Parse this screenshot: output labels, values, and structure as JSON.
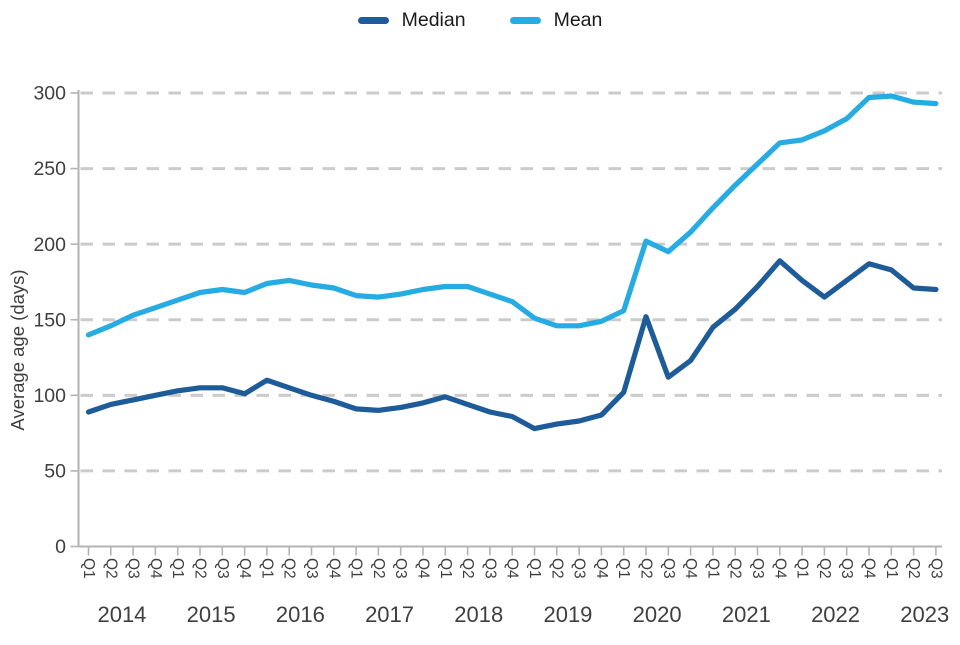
{
  "chart_data": {
    "type": "line",
    "title": "",
    "ylabel": "Average age (days)",
    "ylim": [
      0,
      300
    ],
    "yticks": [
      0,
      50,
      100,
      150,
      200,
      250,
      300
    ],
    "grid": "horizontal-dashed",
    "legend_position": "top-center",
    "x_labels": [
      "Q1",
      "Q2",
      "Q3",
      "Q4",
      "Q1",
      "Q2",
      "Q3",
      "Q4",
      "Q1",
      "Q2",
      "Q3",
      "Q4",
      "Q1",
      "Q2",
      "Q3",
      "Q4",
      "Q1",
      "Q2",
      "Q3",
      "Q4",
      "Q1",
      "Q2",
      "Q3",
      "Q4",
      "Q1",
      "Q2",
      "Q3",
      "Q4",
      "Q1",
      "Q2",
      "Q3",
      "Q4",
      "Q1",
      "Q2",
      "Q3",
      "Q4",
      "Q1",
      "Q2",
      "Q3"
    ],
    "year_labels": [
      {
        "label": "2014",
        "span": 4
      },
      {
        "label": "2015",
        "span": 4
      },
      {
        "label": "2016",
        "span": 4
      },
      {
        "label": "2017",
        "span": 4
      },
      {
        "label": "2018",
        "span": 4
      },
      {
        "label": "2019",
        "span": 4
      },
      {
        "label": "2020",
        "span": 4
      },
      {
        "label": "2021",
        "span": 4
      },
      {
        "label": "2022",
        "span": 4
      },
      {
        "label": "2023",
        "span": 3
      }
    ],
    "series": [
      {
        "name": "Median",
        "color": "#1e5c99",
        "values": [
          89,
          94,
          97,
          100,
          103,
          105,
          105,
          101,
          110,
          105,
          100,
          96,
          91,
          90,
          92,
          95,
          99,
          94,
          89,
          86,
          78,
          81,
          83,
          87,
          102,
          152,
          112,
          123,
          145,
          157,
          172,
          189,
          176,
          165,
          176,
          187,
          183,
          171,
          170
        ]
      },
      {
        "name": "Mean",
        "color": "#26abe3",
        "values": [
          140,
          146,
          153,
          158,
          163,
          168,
          170,
          168,
          174,
          176,
          173,
          171,
          166,
          165,
          167,
          170,
          172,
          172,
          167,
          162,
          151,
          146,
          146,
          149,
          156,
          202,
          195,
          208,
          224,
          239,
          253,
          267,
          269,
          275,
          283,
          297,
          298,
          294,
          293
        ]
      }
    ],
    "colors": {
      "grid": "#cbcbcb",
      "axis": "#b3b3b3",
      "text": "#3f3f3f"
    }
  }
}
